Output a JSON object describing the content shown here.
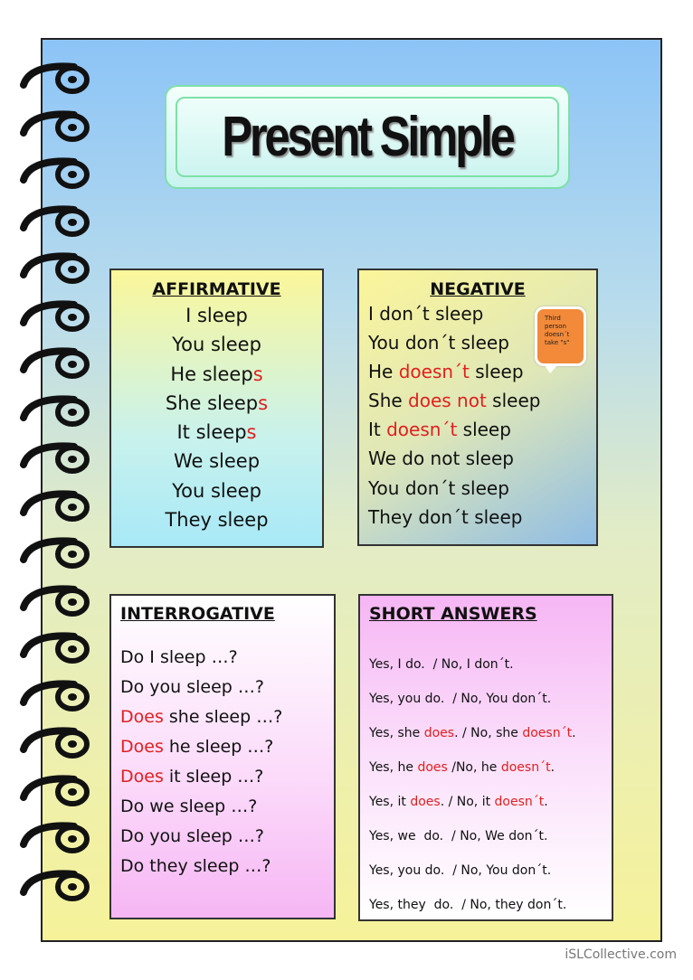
{
  "title": "Present Simple",
  "colors": {
    "highlight": "#e02020",
    "bubble": "#f28a3a"
  },
  "affirmative": {
    "header": "AFFIRMATIVE",
    "lines": [
      [
        {
          "t": "I sleep"
        }
      ],
      [
        {
          "t": "You sleep"
        }
      ],
      [
        {
          "t": "He sleep"
        },
        {
          "t": "s",
          "red": true
        }
      ],
      [
        {
          "t": "She sleep"
        },
        {
          "t": "s",
          "red": true
        }
      ],
      [
        {
          "t": "It sleep"
        },
        {
          "t": "s",
          "red": true
        }
      ],
      [
        {
          "t": "We sleep"
        }
      ],
      [
        {
          "t": "You sleep"
        }
      ],
      [
        {
          "t": "They sleep"
        }
      ]
    ]
  },
  "negative": {
    "header": "NEGATIVE",
    "note": "Third person doesn´t take \"s\"",
    "lines": [
      [
        {
          "t": "I don´t sleep"
        }
      ],
      [
        {
          "t": "You don´t sleep"
        }
      ],
      [
        {
          "t": "He "
        },
        {
          "t": "doesn´t",
          "red": true
        },
        {
          "t": " sleep"
        }
      ],
      [
        {
          "t": "She "
        },
        {
          "t": "does not",
          "red": true
        },
        {
          "t": " sleep"
        }
      ],
      [
        {
          "t": "It "
        },
        {
          "t": "doesn´t",
          "red": true
        },
        {
          "t": " sleep"
        }
      ],
      [
        {
          "t": "We do not sleep"
        }
      ],
      [
        {
          "t": "You don´t sleep"
        }
      ],
      [
        {
          "t": "They don´t sleep"
        }
      ]
    ]
  },
  "interrogative": {
    "header": "INTERROGATIVE",
    "lines": [
      [
        {
          "t": "Do I sleep …?"
        }
      ],
      [
        {
          "t": "Do you sleep …?"
        }
      ],
      [
        {
          "t": "Does",
          "red": true
        },
        {
          "t": " she sleep …?"
        }
      ],
      [
        {
          "t": "Does",
          "red": true
        },
        {
          "t": " he sleep …?"
        }
      ],
      [
        {
          "t": "Does",
          "red": true
        },
        {
          "t": " it sleep …?"
        }
      ],
      [
        {
          "t": "Do we sleep …?"
        }
      ],
      [
        {
          "t": "Do you sleep …?"
        }
      ],
      [
        {
          "t": "Do they sleep …?"
        }
      ]
    ]
  },
  "short_answers": {
    "header": "SHORT ANSWERS",
    "lines": [
      [
        {
          "t": "Yes, I do.  / No, I don´t."
        }
      ],
      [
        {
          "t": "Yes, you do.  / No, You don´t."
        }
      ],
      [
        {
          "t": "Yes, she "
        },
        {
          "t": "does",
          "red": true
        },
        {
          "t": ". / No, she "
        },
        {
          "t": "doesn´t",
          "red": true
        },
        {
          "t": "."
        }
      ],
      [
        {
          "t": "Yes, he "
        },
        {
          "t": "does",
          "red": true
        },
        {
          "t": " /No, he "
        },
        {
          "t": "doesn´t",
          "red": true
        },
        {
          "t": "."
        }
      ],
      [
        {
          "t": "Yes, it "
        },
        {
          "t": "does",
          "red": true
        },
        {
          "t": ". / No, it "
        },
        {
          "t": "doesn´t",
          "red": true
        },
        {
          "t": "."
        }
      ],
      [
        {
          "t": "Yes, we  do.  / No, We don´t."
        }
      ],
      [
        {
          "t": "Yes, you do.  / No, You don´t."
        }
      ],
      [
        {
          "t": "Yes, they  do.  / No, they don´t."
        }
      ]
    ]
  },
  "footer": "iSLCollective.com"
}
